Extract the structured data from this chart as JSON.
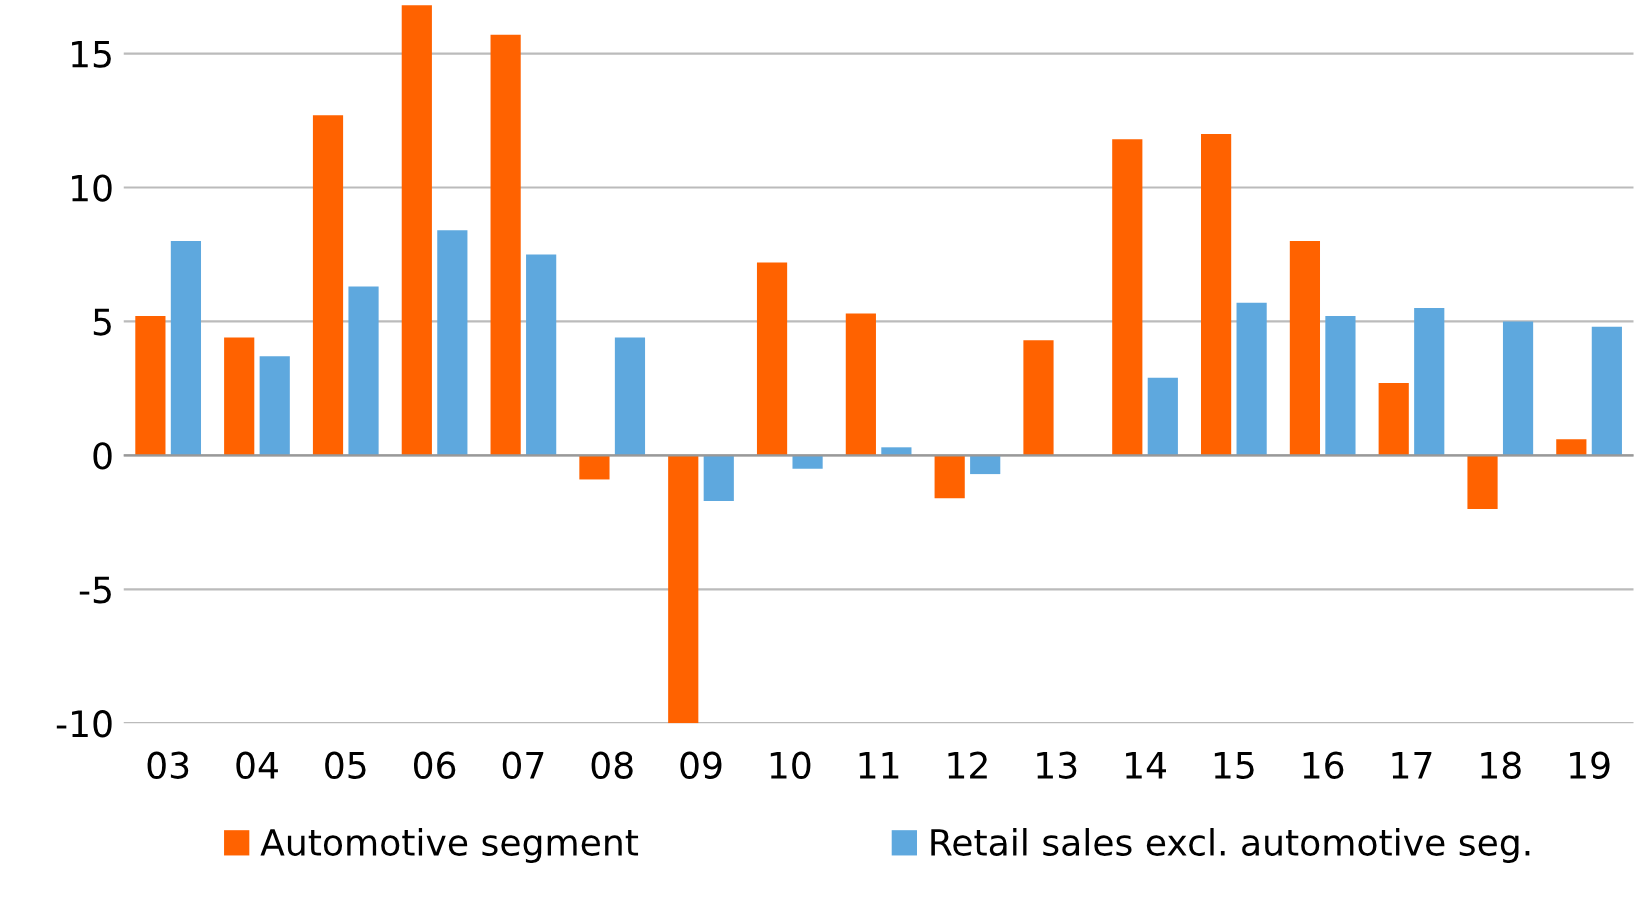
{
  "chart_data": {
    "type": "bar",
    "categories": [
      "03",
      "04",
      "05",
      "06",
      "07",
      "08",
      "09",
      "10",
      "11",
      "12",
      "13",
      "14",
      "15",
      "16",
      "17",
      "18",
      "19"
    ],
    "series": [
      {
        "name": "Automotive segment",
        "color": "#ff6200",
        "values": [
          5.2,
          4.4,
          12.7,
          16.8,
          15.7,
          -0.9,
          -10.0,
          7.2,
          5.3,
          -1.6,
          4.3,
          11.8,
          12.0,
          8.0,
          2.7,
          -2.0,
          0.6
        ]
      },
      {
        "name": "Retail sales excl. automotive seg.",
        "color": "#5ea8de",
        "values": [
          8.0,
          3.7,
          6.3,
          8.4,
          7.5,
          4.4,
          -1.7,
          -0.5,
          0.3,
          -0.7,
          0,
          2.9,
          5.7,
          5.2,
          5.5,
          5.0,
          4.8
        ]
      }
    ],
    "ylim": [
      -10,
      17
    ],
    "yticks": [
      -10,
      -5,
      0,
      5,
      10,
      15
    ],
    "grid": "y",
    "legend": "bottom"
  }
}
